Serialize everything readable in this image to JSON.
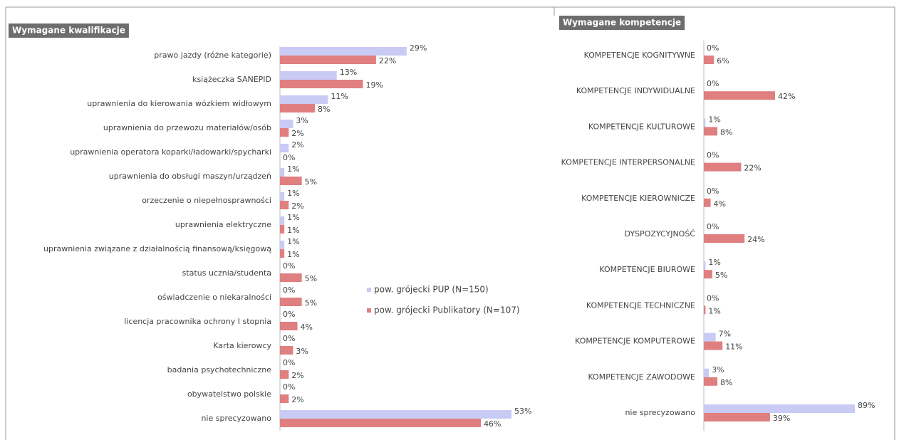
{
  "chart_data": [
    {
      "type": "bar",
      "orientation": "horizontal",
      "title": "Wymagane kwalifikacje",
      "categories": [
        "prawo jazdy (różne kategorie)",
        "książeczka SANEPID",
        "uprawnienia do kierowania wózkiem widłowym",
        "uprawnienia do przewozu materiałów/osób",
        "uprawnienia operatora koparki/ładowarki/spycharki",
        "uprawnienia do obsługi maszyn/urządzeń",
        "orzeczenie o niepełnosprawności",
        "uprawnienia elektryczne",
        "uprawnienia związane z działalnością finansową/księgową",
        "status ucznia/studenta",
        "oświadczenie o niekaralności",
        "licencja pracownika ochrony I stopnia",
        "Karta kierowcy",
        "badania psychotechniczne",
        "obywatelstwo polskie",
        "nie sprecyzowano"
      ],
      "series": [
        {
          "name": "pow. grójecki PUP (N=150)",
          "color": "#c9cbf4",
          "values": [
            29,
            13,
            11,
            3,
            2,
            1,
            1,
            1,
            1,
            0,
            0,
            0,
            0,
            0,
            0,
            53
          ],
          "value_labels": [
            "29%",
            "13%",
            "11%",
            "3%",
            "2%",
            "1%",
            "1%",
            "1%",
            "1%",
            "0%",
            "0%",
            "0%",
            "0%",
            "0%",
            "0%",
            "53%"
          ]
        },
        {
          "name": "pow. grójecki Publikatory (N=107)",
          "color": "#e07f80",
          "values": [
            22,
            19,
            8,
            2,
            0,
            5,
            2,
            1,
            1,
            5,
            5,
            4,
            3,
            2,
            2,
            46
          ],
          "value_labels": [
            "22%",
            "19%",
            "8%",
            "2%",
            "0%",
            "5%",
            "2%",
            "1%",
            "1%",
            "5%",
            "5%",
            "4%",
            "3%",
            "2%",
            "2%",
            "46%"
          ]
        }
      ],
      "legend": true
    },
    {
      "type": "bar",
      "orientation": "horizontal",
      "title": "Wymagane kompetencje",
      "categories": [
        "KOMPETENCJE KOGNITYWNE",
        "KOMPETENCJE INDYWIDUALNE",
        "KOMPETENCJE KULTUROWE",
        "KOMPETENCJE INTERPERSONALNE",
        "KOMPETENCJE KIEROWNICZE",
        "DYSPOZYCYJNOŚĆ",
        "KOMPETENCJE BIUROWE",
        "KOMPETENCJE TECHNICZNE",
        "KOMPETENCJE KOMPUTEROWE",
        "KOMPETENCJE ZAWODOWE",
        "nie sprecyzowano"
      ],
      "series": [
        {
          "name": "pow. grójecki PUP (N=150)",
          "color": "#c9cbf4",
          "values": [
            0,
            0,
            1,
            0,
            0,
            0,
            1,
            0,
            7,
            3,
            89
          ],
          "value_labels": [
            "0%",
            "0%",
            "1%",
            "0%",
            "0%",
            "0%",
            "1%",
            "0%",
            "7%",
            "3%",
            "89%"
          ]
        },
        {
          "name": "pow. grójecki Publikatory (N=107)",
          "color": "#e07f80",
          "values": [
            6,
            42,
            8,
            22,
            4,
            24,
            5,
            1,
            11,
            8,
            39
          ],
          "value_labels": [
            "6%",
            "42%",
            "8%",
            "22%",
            "4%",
            "24%",
            "5%",
            "1%",
            "11%",
            "8%",
            "39%"
          ]
        }
      ],
      "legend": false
    }
  ]
}
